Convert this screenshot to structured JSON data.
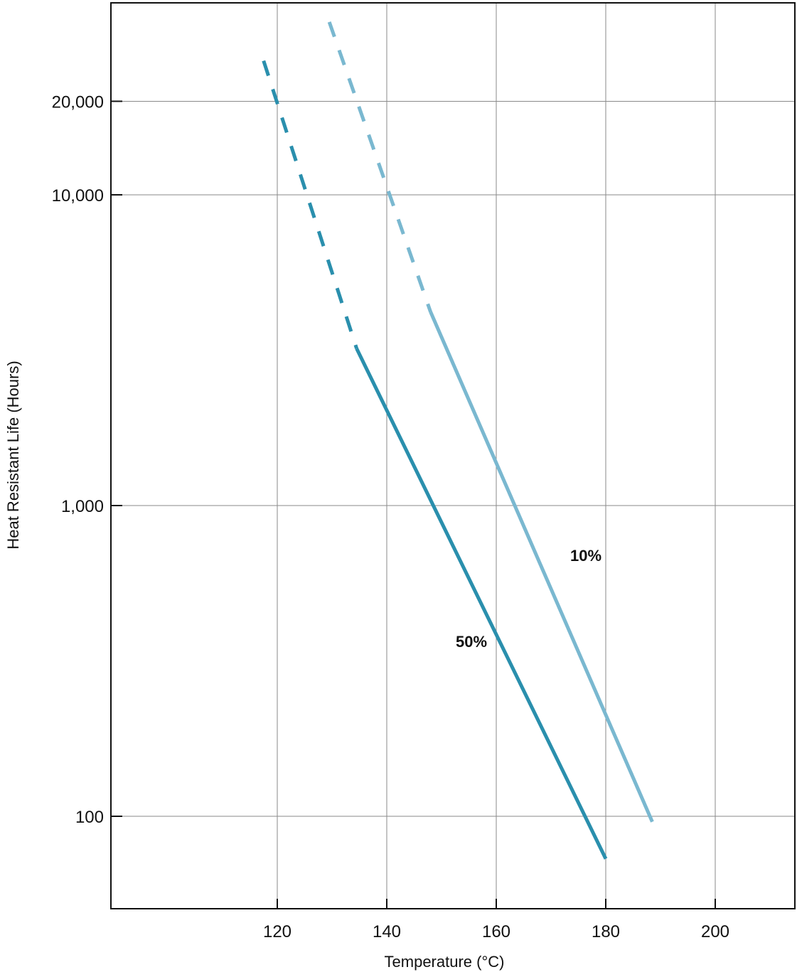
{
  "chart_data": {
    "type": "line",
    "title": "",
    "xlabel": "Temperature (°C)",
    "ylabel": "Heat Resistant Life (Hours)",
    "y_scale": "log",
    "grid": true,
    "x_ticks": [
      120,
      140,
      160,
      180,
      200
    ],
    "x_tick_labels": [
      "120",
      "140",
      "160",
      "180",
      "200"
    ],
    "y_ticks": [
      100,
      1000,
      10000,
      20000
    ],
    "y_tick_labels": [
      "100",
      "1,000",
      "10,000",
      "20,000"
    ],
    "series": [
      {
        "name": "50%",
        "color": "#2a8fad",
        "dashed": {
          "x": [
            117.5,
            134.5
          ],
          "y": [
            27000,
            3200
          ]
        },
        "solid": {
          "x": [
            134.5,
            180.0
          ],
          "y": [
            3200,
            73
          ]
        }
      },
      {
        "name": "10%",
        "color": "#7ab8d0",
        "dashed": {
          "x": [
            129.5,
            148.0
          ],
          "y": [
            36000,
            4200
          ]
        },
        "solid": {
          "x": [
            148.0,
            188.5
          ],
          "y": [
            4200,
            96
          ]
        }
      }
    ]
  }
}
